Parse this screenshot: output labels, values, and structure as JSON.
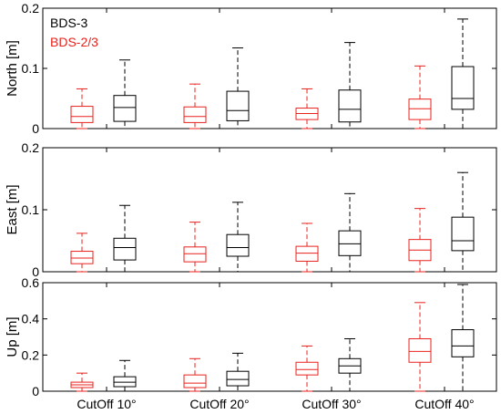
{
  "chart_data": [
    {
      "type": "box",
      "ylabel": "North [m]",
      "ylim": [
        0,
        0.2
      ],
      "yticks": [
        0,
        0.1,
        0.2
      ],
      "ytick_labels": [
        "0",
        "0.1",
        "0.2"
      ],
      "legend": [
        {
          "name": "BDS-3",
          "color": "#000000"
        },
        {
          "name": "BDS-2/3",
          "color": "#e8221d"
        }
      ],
      "legend_position": "top-left",
      "categories": [
        "CutOff 10°",
        "CutOff 20°",
        "CutOff 30°",
        "CutOff 40°"
      ],
      "series": [
        {
          "name": "BDS-2/3",
          "color": "#e8221d",
          "boxes": [
            {
              "min": 0.0,
              "q1": 0.01,
              "median": 0.02,
              "q3": 0.037,
              "max": 0.066
            },
            {
              "min": 0.0,
              "q1": 0.01,
              "median": 0.02,
              "q3": 0.036,
              "max": 0.074
            },
            {
              "min": 0.0,
              "q1": 0.015,
              "median": 0.025,
              "q3": 0.034,
              "max": 0.066
            },
            {
              "min": 0.0,
              "q1": 0.015,
              "median": 0.033,
              "q3": 0.049,
              "max": 0.104
            }
          ]
        },
        {
          "name": "BDS-3",
          "color": "#000000",
          "boxes": [
            {
              "min": 0.0,
              "q1": 0.012,
              "median": 0.035,
              "q3": 0.055,
              "max": 0.114
            },
            {
              "min": 0.0,
              "q1": 0.013,
              "median": 0.03,
              "q3": 0.062,
              "max": 0.134
            },
            {
              "min": 0.0,
              "q1": 0.011,
              "median": 0.032,
              "q3": 0.064,
              "max": 0.143
            },
            {
              "min": 0.0,
              "q1": 0.032,
              "median": 0.05,
              "q3": 0.103,
              "max": 0.182
            }
          ]
        }
      ]
    },
    {
      "type": "box",
      "ylabel": "East [m]",
      "ylim": [
        0,
        0.2
      ],
      "yticks": [
        0,
        0.1,
        0.2
      ],
      "ytick_labels": [
        "0",
        "0.1",
        "0.2"
      ],
      "categories": [
        "CutOff 10°",
        "CutOff 20°",
        "CutOff 30°",
        "CutOff 40°"
      ],
      "series": [
        {
          "name": "BDS-2/3",
          "color": "#e8221d",
          "boxes": [
            {
              "min": 0.0,
              "q1": 0.013,
              "median": 0.022,
              "q3": 0.033,
              "max": 0.062
            },
            {
              "min": 0.0,
              "q1": 0.016,
              "median": 0.029,
              "q3": 0.04,
              "max": 0.08
            },
            {
              "min": 0.0,
              "q1": 0.017,
              "median": 0.03,
              "q3": 0.041,
              "max": 0.078
            },
            {
              "min": 0.0,
              "q1": 0.018,
              "median": 0.035,
              "q3": 0.052,
              "max": 0.102
            }
          ]
        },
        {
          "name": "BDS-3",
          "color": "#000000",
          "boxes": [
            {
              "min": 0.0,
              "q1": 0.019,
              "median": 0.039,
              "q3": 0.054,
              "max": 0.107
            },
            {
              "min": 0.0,
              "q1": 0.025,
              "median": 0.039,
              "q3": 0.06,
              "max": 0.112
            },
            {
              "min": 0.0,
              "q1": 0.026,
              "median": 0.045,
              "q3": 0.066,
              "max": 0.126
            },
            {
              "min": 0.0,
              "q1": 0.034,
              "median": 0.05,
              "q3": 0.088,
              "max": 0.16
            }
          ]
        }
      ]
    },
    {
      "type": "box",
      "ylabel": "Up [m]",
      "ylim": [
        0,
        0.6
      ],
      "yticks": [
        0,
        0.2,
        0.4,
        0.6
      ],
      "ytick_labels": [
        "0",
        "0.2",
        "0.4",
        "0.6"
      ],
      "xtick_labels": [
        "CutOff 10°",
        "CutOff 20°",
        "CutOff 30°",
        "CutOff 40°"
      ],
      "categories": [
        "CutOff 10°",
        "CutOff 20°",
        "CutOff 30°",
        "CutOff 40°"
      ],
      "series": [
        {
          "name": "BDS-2/3",
          "color": "#e8221d",
          "boxes": [
            {
              "min": 0.0,
              "q1": 0.02,
              "median": 0.035,
              "q3": 0.05,
              "max": 0.1
            },
            {
              "min": 0.0,
              "q1": 0.02,
              "median": 0.045,
              "q3": 0.09,
              "max": 0.18
            },
            {
              "min": 0.0,
              "q1": 0.09,
              "median": 0.12,
              "q3": 0.16,
              "max": 0.25
            },
            {
              "min": 0.0,
              "q1": 0.16,
              "median": 0.22,
              "q3": 0.29,
              "max": 0.49
            }
          ]
        },
        {
          "name": "BDS-3",
          "color": "#000000",
          "boxes": [
            {
              "min": 0.0,
              "q1": 0.025,
              "median": 0.05,
              "q3": 0.08,
              "max": 0.17
            },
            {
              "min": 0.0,
              "q1": 0.03,
              "median": 0.065,
              "q3": 0.11,
              "max": 0.21
            },
            {
              "min": 0.0,
              "q1": 0.1,
              "median": 0.14,
              "q3": 0.18,
              "max": 0.29
            },
            {
              "min": 0.0,
              "q1": 0.19,
              "median": 0.25,
              "q3": 0.34,
              "max": 0.59
            }
          ]
        }
      ]
    }
  ]
}
